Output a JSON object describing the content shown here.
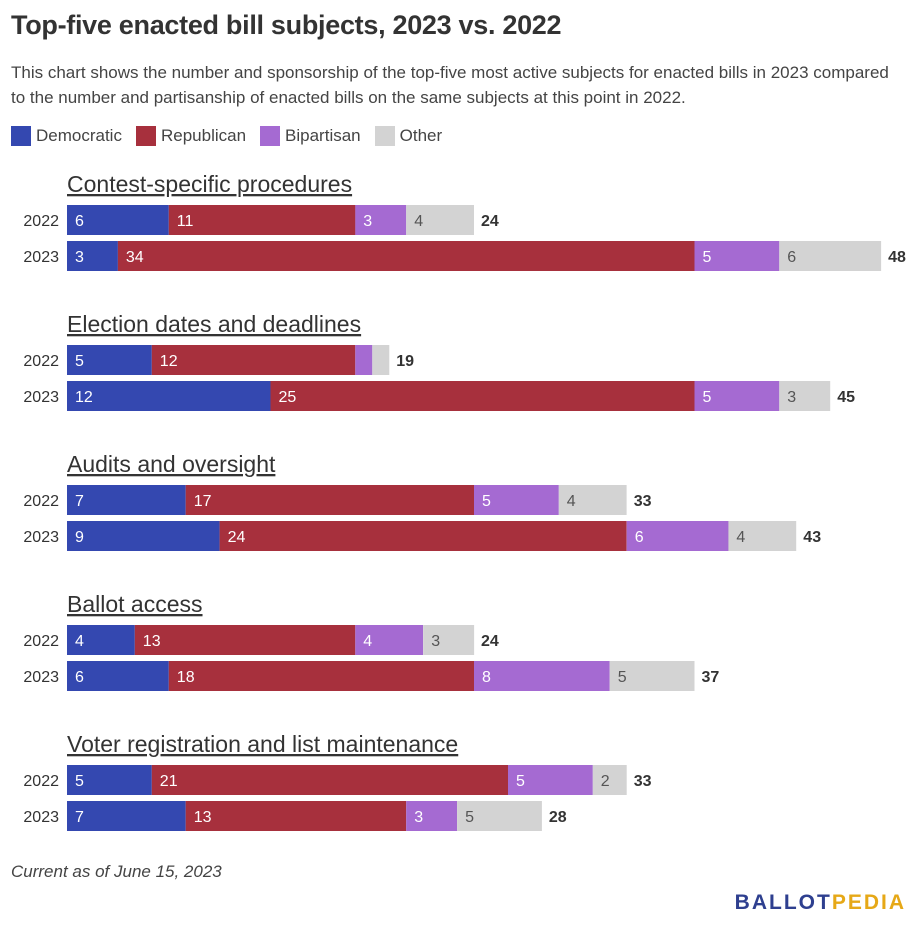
{
  "chart_data": {
    "type": "bar",
    "orientation": "horizontal",
    "stacked": true,
    "title": "Top-five enacted bill subjects, 2023 vs. 2022",
    "subtitle": "This chart shows the number and sponsorship of the top-five most active subjects for enacted bills in 2023 compared to the number and partisanship of enacted bills on the same subjects at this point in 2022.",
    "legend": [
      {
        "name": "Democratic",
        "color": "#3448b0"
      },
      {
        "name": "Republican",
        "color": "#a7303d"
      },
      {
        "name": "Bipartisan",
        "color": "#a56ad2"
      },
      {
        "name": "Other",
        "color": "#d3d3d3"
      }
    ],
    "legend_placement": "top-left",
    "groups": [
      {
        "title": "Contest-specific procedures",
        "rows": [
          {
            "year": "2022",
            "values": [
              6,
              11,
              3,
              4
            ],
            "labels": [
              "6",
              "11",
              "3",
              "4"
            ],
            "total": 24
          },
          {
            "year": "2023",
            "values": [
              3,
              34,
              5,
              6
            ],
            "labels": [
              "3",
              "34",
              "5",
              "6"
            ],
            "total": 48
          }
        ]
      },
      {
        "title": "Election dates and deadlines",
        "rows": [
          {
            "year": "2022",
            "values": [
              5,
              12,
              1,
              1
            ],
            "labels": [
              "5",
              "12",
              "",
              ""
            ],
            "total": 19
          },
          {
            "year": "2023",
            "values": [
              12,
              25,
              5,
              3
            ],
            "labels": [
              "12",
              "25",
              "5",
              "3"
            ],
            "total": 45
          }
        ]
      },
      {
        "title": "Audits and oversight",
        "rows": [
          {
            "year": "2022",
            "values": [
              7,
              17,
              5,
              4
            ],
            "labels": [
              "7",
              "17",
              "5",
              "4"
            ],
            "total": 33
          },
          {
            "year": "2023",
            "values": [
              9,
              24,
              6,
              4
            ],
            "labels": [
              "9",
              "24",
              "6",
              "4"
            ],
            "total": 43
          }
        ]
      },
      {
        "title": "Ballot access",
        "rows": [
          {
            "year": "2022",
            "values": [
              4,
              13,
              4,
              3
            ],
            "labels": [
              "4",
              "13",
              "4",
              "3"
            ],
            "total": 24
          },
          {
            "year": "2023",
            "values": [
              6,
              18,
              8,
              5
            ],
            "labels": [
              "6",
              "18",
              "8",
              "5"
            ],
            "total": 37
          }
        ]
      },
      {
        "title": "Voter registration and list maintenance",
        "rows": [
          {
            "year": "2022",
            "values": [
              5,
              21,
              5,
              2
            ],
            "labels": [
              "5",
              "21",
              "5",
              "2"
            ],
            "total": 33
          },
          {
            "year": "2023",
            "values": [
              7,
              13,
              3,
              5
            ],
            "labels": [
              "7",
              "13",
              "3",
              "5"
            ],
            "total": 28
          }
        ]
      }
    ],
    "xlim": [
      0,
      48
    ],
    "grid": false
  },
  "footnote": "Current as of June 15, 2023",
  "logo": {
    "part1": "BALLOT",
    "part2": "PEDIA",
    "color1": "#2e3f8f",
    "color2": "#e6a817"
  }
}
